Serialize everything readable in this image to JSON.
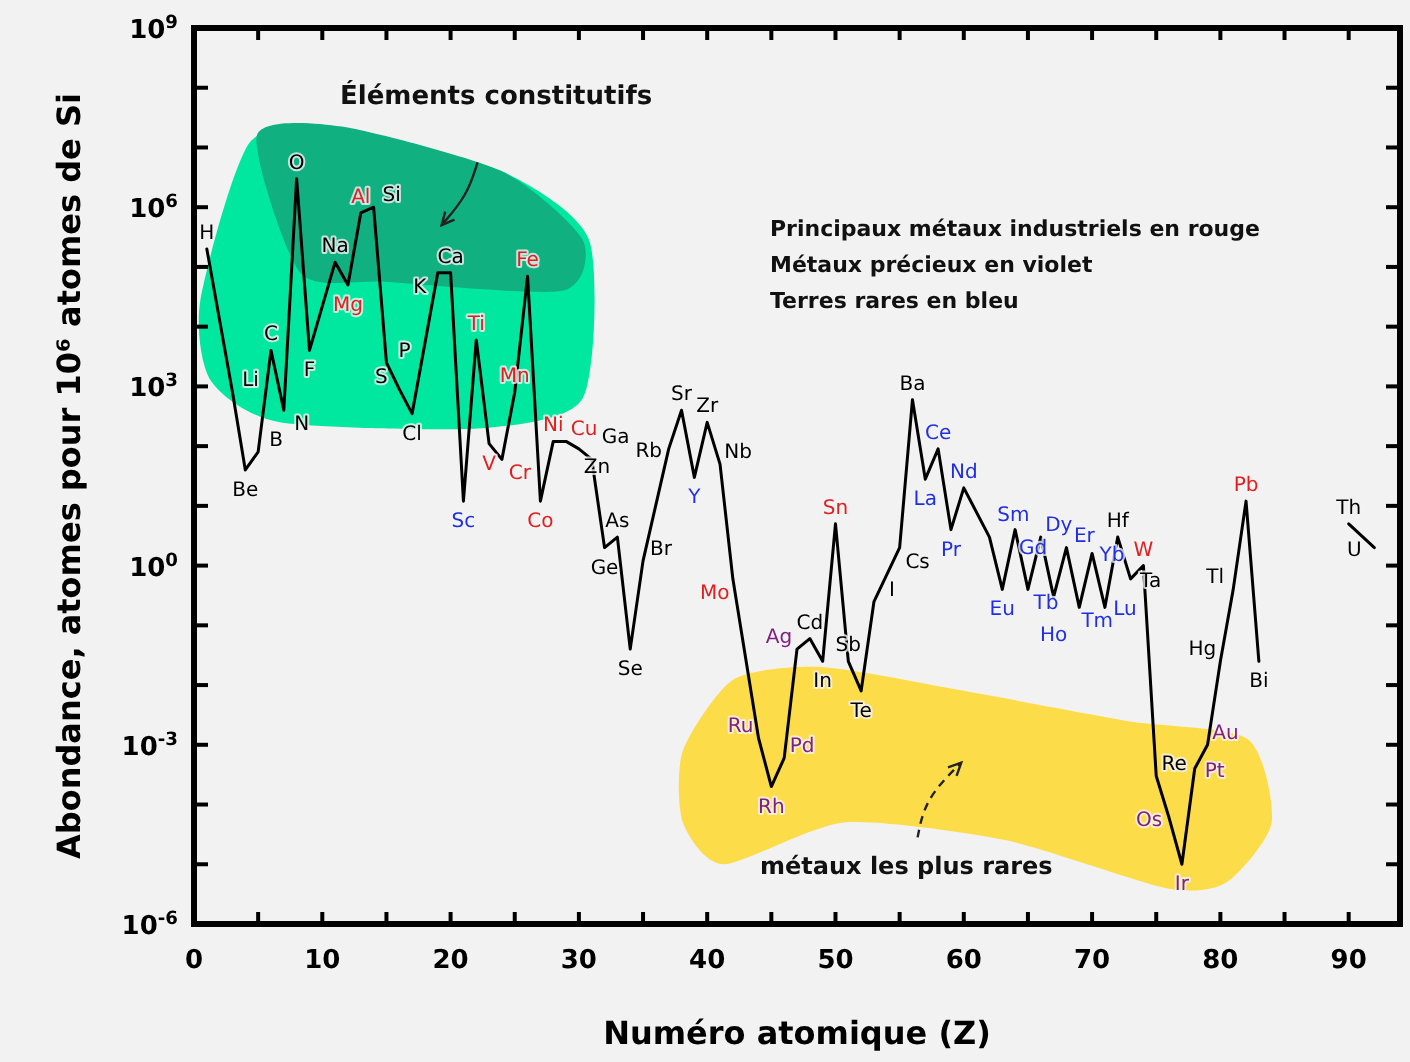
{
  "chart_data": {
    "type": "line",
    "xlabel": "Numéro atomique (Z)",
    "ylabel": "Abondance, atomes pour 10⁶ atomes de Si",
    "log": "y",
    "xlim": [
      0,
      94
    ],
    "ylim": [
      1e-06,
      1000000000.0
    ],
    "xticks": [
      0,
      {
        "value": 5,
        "label": null
      },
      10,
      {
        "value": 15,
        "label": null
      },
      20,
      {
        "value": 25,
        "label": null
      },
      30,
      {
        "value": 35,
        "label": null
      },
      40,
      {
        "value": 45,
        "label": null
      },
      50,
      {
        "value": 55,
        "label": null
      },
      60,
      {
        "value": 65,
        "label": null
      },
      70,
      {
        "value": 75,
        "label": null
      },
      80,
      {
        "value": 85,
        "label": null
      },
      90
    ],
    "yticks": [
      {
        "value": 1e-06,
        "label": "10$^{-6}$"
      },
      {
        "value": 1e-05,
        "label": null
      },
      {
        "value": 0.0001,
        "label": null
      },
      {
        "value": 0.001,
        "label": "10$^{-3}$"
      },
      {
        "value": 0.01,
        "label": null
      },
      {
        "value": 0.1,
        "label": null
      },
      {
        "value": 1,
        "label": "10$^{0}$"
      },
      {
        "value": 10,
        "label": null
      },
      {
        "value": 100,
        "label": null
      },
      {
        "value": 1000,
        "label": "10$^{3}$"
      },
      {
        "value": 10000.0,
        "label": null
      },
      {
        "value": 100000.0,
        "label": null
      },
      {
        "value": 1000000.0,
        "label": "10$^{6}$"
      },
      {
        "value": 10000000.0,
        "label": null
      },
      {
        "value": 100000000.0,
        "label": null
      },
      {
        "value": 1000000000.0,
        "label": "10$^{9}$"
      }
    ],
    "grid": false,
    "marker": "none",
    "line_style": "solid",
    "series": [
      {
        "color": "#000000",
        "x": [
          1,
          3,
          4,
          5,
          6,
          7,
          8,
          9,
          11,
          12,
          13,
          14,
          15,
          16,
          17,
          19,
          20,
          21,
          22,
          23,
          24,
          25,
          26,
          27,
          28,
          29,
          30,
          31,
          32,
          33,
          34,
          35,
          37,
          38,
          39,
          40,
          41,
          42,
          44,
          45,
          46,
          47,
          48,
          49,
          50,
          51,
          52,
          53,
          55,
          56,
          57,
          58,
          59,
          60,
          62,
          63,
          64,
          65,
          66,
          67,
          68,
          69,
          70,
          71,
          72,
          73,
          74,
          75,
          76,
          77,
          78,
          79,
          80,
          81,
          82,
          83
        ],
        "values": [
          200000.0,
          800,
          40,
          80,
          4000,
          400,
          3000000.0,
          4000,
          120000.0,
          50000.0,
          800000.0,
          1000000.0,
          2500,
          900,
          350,
          80000.0,
          80000.0,
          12,
          6000,
          110,
          60,
          800,
          70000.0,
          12,
          120,
          120,
          90,
          60,
          2,
          3,
          0.04,
          1.2,
          90,
          400,
          30,
          250,
          50,
          0.6,
          0.0013,
          0.0002,
          0.0006,
          0.04,
          0.06,
          0.025,
          5,
          0.025,
          0.008,
          0.25,
          2,
          600,
          28,
          90,
          4,
          20,
          3,
          0.4,
          4,
          0.4,
          3,
          0.3,
          2,
          0.2,
          1.6,
          0.2,
          3,
          0.6,
          1,
          0.0003,
          6e-05,
          1e-05,
          0.0004,
          0.001,
          0.025,
          0.4,
          12,
          0.025
        ],
        "colors": [
          "#000000",
          "#000000",
          "#000000",
          "#000000",
          "#000000",
          "#000000",
          "#000000",
          "#000000",
          "#000000",
          "#e02020",
          "#e02020",
          "#000000",
          "#000000",
          "#000000",
          "#000000",
          "#000000",
          "#000000",
          "#2030e0",
          "#e02020",
          "#e02020",
          "#e02020",
          "#e02020",
          "#e02020",
          "#e02020",
          "#e02020",
          "#e02020",
          "#000000",
          "#000000",
          "#000000",
          "#000000",
          "#000000",
          "#000000",
          "#000000",
          "#000000",
          "#2030e0",
          "#000000",
          "#000000",
          "#e02020",
          "#802080",
          "#802080",
          "#802080",
          "#802080",
          "#000000",
          "#000000",
          "#e02020",
          "#000000",
          "#000000",
          "#000000",
          "#000000",
          "#000000",
          "#2030e0",
          "#2030e0",
          "#2030e0",
          "#2030e0",
          "#2030e0",
          "#2030e0",
          "#2030e0",
          "#2030e0",
          "#2030e0",
          "#2030e0",
          "#2030e0",
          "#2030e0",
          "#2030e0",
          "#2030e0",
          "#000000",
          "#000000",
          "#e02020",
          "#000000",
          "#802080",
          "#802080",
          "#802080",
          "#802080",
          "#000000",
          "#000000",
          "#e02020",
          "#000000"
        ]
      },
      {
        "color": "#000000",
        "x": [
          90,
          92
        ],
        "values": [
          5,
          2
        ],
        "colors": [
          "#000000",
          "#000000"
        ]
      }
    ],
    "annotations": [
      "Éléments constitutifs",
      "Principaux métaux industriels en rouge",
      "Métaux précieux en violet",
      "Terres rares en bleu",
      "métaux les plus rares",
      {
        "text": "H",
        "x": 1,
        "y": 200000.0
      },
      {
        "text": "Li",
        "x": 3,
        "y": 800
      },
      {
        "text": "Be",
        "x": 4,
        "y": 40
      },
      {
        "text": "B",
        "x": 5,
        "y": 80
      },
      {
        "text": "C",
        "x": 6,
        "y": 4000
      },
      {
        "text": "N",
        "x": 7,
        "y": 400
      },
      {
        "text": "O",
        "x": 8,
        "y": 3000000.0
      },
      {
        "text": "F",
        "x": 9,
        "y": 4000
      },
      {
        "text": "Na",
        "x": 11,
        "y": 120000.0
      },
      {
        "text": "Mg",
        "x": 12,
        "y": 50000.0
      },
      {
        "text": "Al",
        "x": 13,
        "y": 800000.0
      },
      {
        "text": "Si",
        "x": 14,
        "y": 1000000.0
      },
      {
        "text": "P",
        "x": 15,
        "y": 2500
      },
      {
        "text": "S",
        "x": 16,
        "y": 900
      },
      {
        "text": "Cl",
        "x": 17,
        "y": 350
      },
      {
        "text": "K",
        "x": 19,
        "y": 80000.0
      },
      {
        "text": "Ca",
        "x": 20,
        "y": 80000.0
      },
      {
        "text": "Sc",
        "x": 21,
        "y": 12
      },
      {
        "text": "Ti",
        "x": 22,
        "y": 6000
      },
      {
        "text": "V",
        "x": 23,
        "y": 110
      },
      {
        "text": "Cr",
        "x": 24,
        "y": 60
      },
      {
        "text": "Mn",
        "x": 25,
        "y": 800
      },
      {
        "text": "Fe",
        "x": 26,
        "y": 70000.0
      },
      {
        "text": "Co",
        "x": 27,
        "y": 12
      },
      {
        "text": "Ni",
        "x": 28,
        "y": 120
      },
      {
        "text": "Cu",
        "x": 29,
        "y": 120
      },
      {
        "text": "Zn",
        "x": 30,
        "y": 90
      },
      {
        "text": "Ga",
        "x": 31,
        "y": 60
      },
      {
        "text": "Ge",
        "x": 32,
        "y": 2
      },
      {
        "text": "As",
        "x": 33,
        "y": 3
      },
      {
        "text": "Se",
        "x": 34,
        "y": 0.04
      },
      {
        "text": "Br",
        "x": 35,
        "y": 1.2
      },
      {
        "text": "Rb",
        "x": 37,
        "y": 90
      },
      {
        "text": "Sr",
        "x": 38,
        "y": 400
      },
      {
        "text": "Y",
        "x": 39,
        "y": 30
      },
      {
        "text": "Zr",
        "x": 40,
        "y": 250
      },
      {
        "text": "Nb",
        "x": 41,
        "y": 50
      },
      {
        "text": "Mo",
        "x": 42,
        "y": 0.6
      },
      {
        "text": "Ru",
        "x": 44,
        "y": 0.0013
      },
      {
        "text": "Rh",
        "x": 45,
        "y": 0.0002
      },
      {
        "text": "Pd",
        "x": 46,
        "y": 0.0006
      },
      {
        "text": "Ag",
        "x": 47,
        "y": 0.04
      },
      {
        "text": "Cd",
        "x": 48,
        "y": 0.06
      },
      {
        "text": "In",
        "x": 49,
        "y": 0.025
      },
      {
        "text": "Sn",
        "x": 50,
        "y": 5
      },
      {
        "text": "Sb",
        "x": 51,
        "y": 0.025
      },
      {
        "text": "Te",
        "x": 52,
        "y": 0.008
      },
      {
        "text": "I",
        "x": 53,
        "y": 0.25
      },
      {
        "text": "Cs",
        "x": 55,
        "y": 2
      },
      {
        "text": "Ba",
        "x": 56,
        "y": 600
      },
      {
        "text": "La",
        "x": 57,
        "y": 28
      },
      {
        "text": "Ce",
        "x": 58,
        "y": 90
      },
      {
        "text": "Pr",
        "x": 59,
        "y": 4
      },
      {
        "text": "Nd",
        "x": 60,
        "y": 20
      },
      {
        "text": "Sm",
        "x": 62,
        "y": 3
      },
      {
        "text": "Eu",
        "x": 63,
        "y": 0.4
      },
      {
        "text": "Gd",
        "x": 64,
        "y": 4
      },
      {
        "text": "Tb",
        "x": 65,
        "y": 0.4
      },
      {
        "text": "Dy",
        "x": 66,
        "y": 3
      },
      {
        "text": "Ho",
        "x": 67,
        "y": 0.3
      },
      {
        "text": "Er",
        "x": 68,
        "y": 2
      },
      {
        "text": "Tm",
        "x": 69,
        "y": 0.2
      },
      {
        "text": "Yb",
        "x": 70,
        "y": 1.6
      },
      {
        "text": "Lu",
        "x": 71,
        "y": 0.2
      },
      {
        "text": "Hf",
        "x": 72,
        "y": 3
      },
      {
        "text": "Ta",
        "x": 73,
        "y": 0.6
      },
      {
        "text": "W",
        "x": 74,
        "y": 1
      },
      {
        "text": "Re",
        "x": 75,
        "y": 0.0003
      },
      {
        "text": "Os",
        "x": 76,
        "y": 6e-05
      },
      {
        "text": "Ir",
        "x": 77,
        "y": 1e-05
      },
      {
        "text": "Pt",
        "x": 78,
        "y": 0.0004
      },
      {
        "text": "Au",
        "x": 79,
        "y": 0.001
      },
      {
        "text": "Hg",
        "x": 80,
        "y": 0.025
      },
      {
        "text": "Tl",
        "x": 81,
        "y": 0.4
      },
      {
        "text": "Pb",
        "x": 82,
        "y": 12
      },
      {
        "text": "Bi",
        "x": 83,
        "y": 0.025
      },
      {
        "text": "Th",
        "x": 90,
        "y": 5
      },
      {
        "text": "U",
        "x": 92,
        "y": 2
      }
    ]
  }
}
